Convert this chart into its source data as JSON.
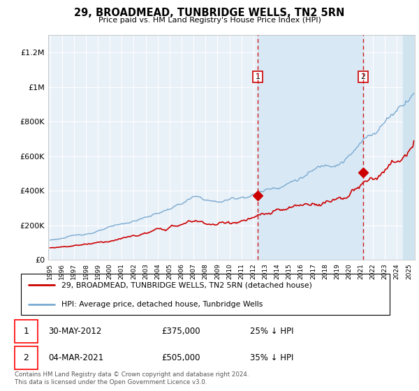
{
  "title": "29, BROADMEAD, TUNBRIDGE WELLS, TN2 5RN",
  "subtitle": "Price paid vs. HM Land Registry's House Price Index (HPI)",
  "hpi_color": "#7aaad0",
  "price_color": "#cc0000",
  "dashed_color": "#cc0000",
  "background_plot": "#e8f0f8",
  "highlight_color": "#d8e8f5",
  "legend1": "29, BROADMEAD, TUNBRIDGE WELLS, TN2 5RN (detached house)",
  "legend2": "HPI: Average price, detached house, Tunbridge Wells",
  "annotation1_label": "1",
  "annotation1_date": "30-MAY-2012",
  "annotation1_price": "£375,000",
  "annotation1_pct": "25% ↓ HPI",
  "annotation2_label": "2",
  "annotation2_date": "04-MAR-2021",
  "annotation2_price": "£505,000",
  "annotation2_pct": "35% ↓ HPI",
  "footer": "Contains HM Land Registry data © Crown copyright and database right 2024.\nThis data is licensed under the Open Government Licence v3.0.",
  "ylim": [
    0,
    1300000
  ],
  "year_start": 1995,
  "year_end": 2025,
  "sale1_year_val": 2012.37,
  "sale1_price": 375000,
  "sale2_year_val": 2021.17,
  "sale2_price": 505000
}
